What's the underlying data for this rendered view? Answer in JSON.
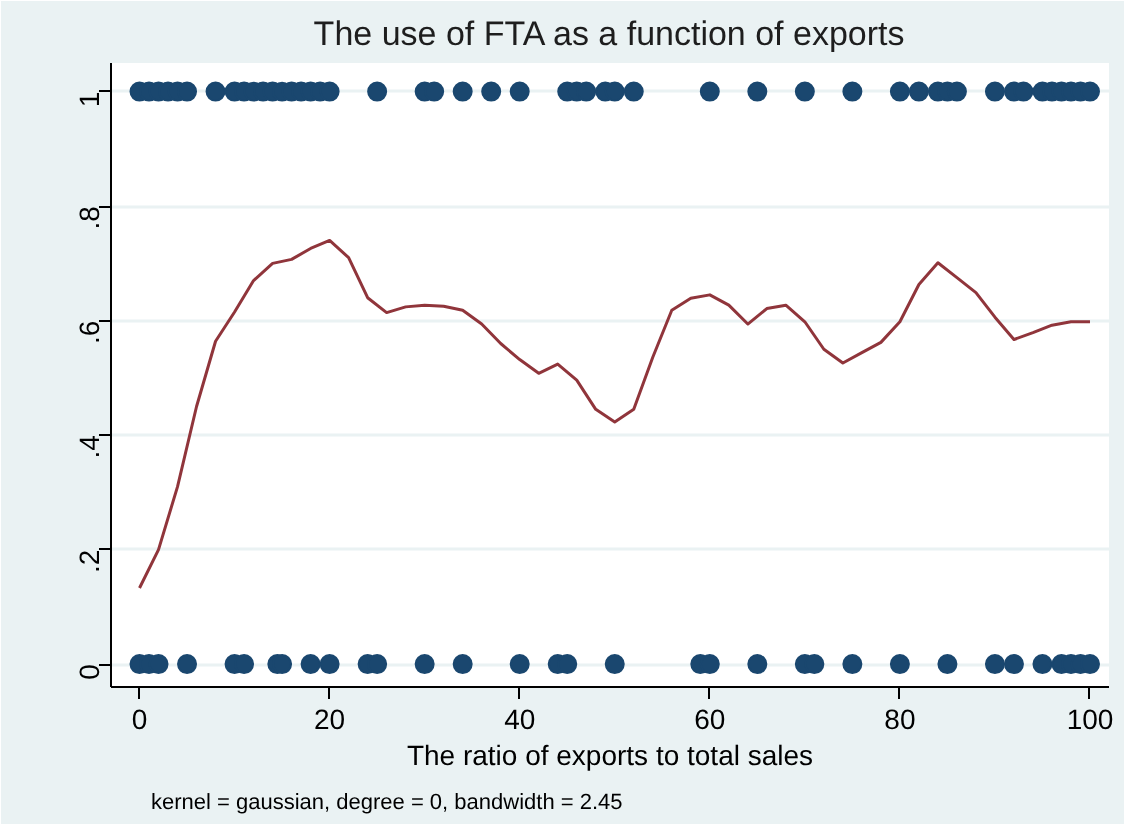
{
  "chart_data": {
    "type": "scatter",
    "title": "The use of FTA as a function of exports",
    "xlabel": "The ratio of exports to total sales",
    "annotations": [
      "kernel = gaussian, degree = 0, bandwidth = 2.45"
    ],
    "xlim": [
      -3,
      102
    ],
    "ylim": [
      -0.04,
      1.05
    ],
    "xticks": [
      0,
      20,
      40,
      60,
      80,
      100
    ],
    "yticks": [
      0,
      {
        "value": 0.2,
        "label": ".2"
      },
      {
        "value": 0.4,
        "label": ".4"
      },
      {
        "value": 0.6,
        "label": ".6"
      },
      {
        "value": 0.8,
        "label": ".8"
      },
      1
    ],
    "grid": "y",
    "marker": "circle",
    "series": [
      {
        "color": "#1a476f",
        "x": [
          0,
          1,
          2,
          3,
          4,
          5,
          8,
          10,
          11,
          12,
          13,
          14,
          15,
          16,
          17,
          18,
          19,
          20,
          25,
          30,
          31,
          34,
          37,
          40,
          45,
          46,
          47,
          49,
          50,
          52,
          60,
          65,
          70,
          75,
          80,
          82,
          84,
          85,
          86,
          90,
          92,
          93,
          95,
          96,
          97,
          98,
          99,
          100,
          0,
          1,
          2,
          5,
          10,
          11,
          14.5,
          15,
          18,
          20,
          24,
          25,
          30,
          34,
          40,
          44,
          45,
          50,
          59,
          60,
          65,
          70,
          71,
          75,
          80,
          85,
          90,
          92,
          95,
          97,
          98,
          99,
          100
        ],
        "values": [
          1,
          1,
          1,
          1,
          1,
          1,
          1,
          1,
          1,
          1,
          1,
          1,
          1,
          1,
          1,
          1,
          1,
          1,
          1,
          1,
          1,
          1,
          1,
          1,
          1,
          1,
          1,
          1,
          1,
          1,
          1,
          1,
          1,
          1,
          1,
          1,
          1,
          1,
          1,
          1,
          1,
          1,
          1,
          1,
          1,
          1,
          1,
          1,
          0,
          0,
          0,
          0,
          0,
          0,
          0,
          0,
          0,
          0,
          0,
          0,
          0,
          0,
          0,
          0,
          0,
          0,
          0,
          0,
          0,
          0,
          0,
          0,
          0,
          0,
          0,
          0,
          0,
          0,
          0,
          0,
          0
        ]
      },
      {
        "type": "line",
        "color": "#90353b",
        "marker": "none",
        "x": [
          0,
          2,
          4,
          6,
          8,
          10,
          12,
          14,
          16,
          18,
          20,
          22,
          24,
          26,
          28,
          30,
          32,
          34,
          36,
          38,
          40,
          42,
          44,
          46,
          48,
          50,
          52,
          54,
          56,
          58,
          60,
          62,
          64,
          66,
          68,
          70,
          72,
          74,
          76,
          78,
          80,
          82,
          84,
          86,
          88,
          90,
          92,
          94,
          96,
          98,
          100
        ],
        "values": [
          0.133,
          0.2,
          0.31,
          0.45,
          0.564,
          0.615,
          0.67,
          0.7,
          0.707,
          0.726,
          0.74,
          0.71,
          0.64,
          0.614,
          0.624,
          0.627,
          0.625,
          0.618,
          0.594,
          0.56,
          0.532,
          0.508,
          0.524,
          0.496,
          0.445,
          0.423,
          0.445,
          0.536,
          0.618,
          0.639,
          0.645,
          0.627,
          0.594,
          0.621,
          0.627,
          0.598,
          0.55,
          0.526,
          0.544,
          0.562,
          0.598,
          0.663,
          0.701,
          0.675,
          0.649,
          0.606,
          0.567,
          0.579,
          0.592,
          0.598,
          0.598
        ]
      }
    ]
  }
}
